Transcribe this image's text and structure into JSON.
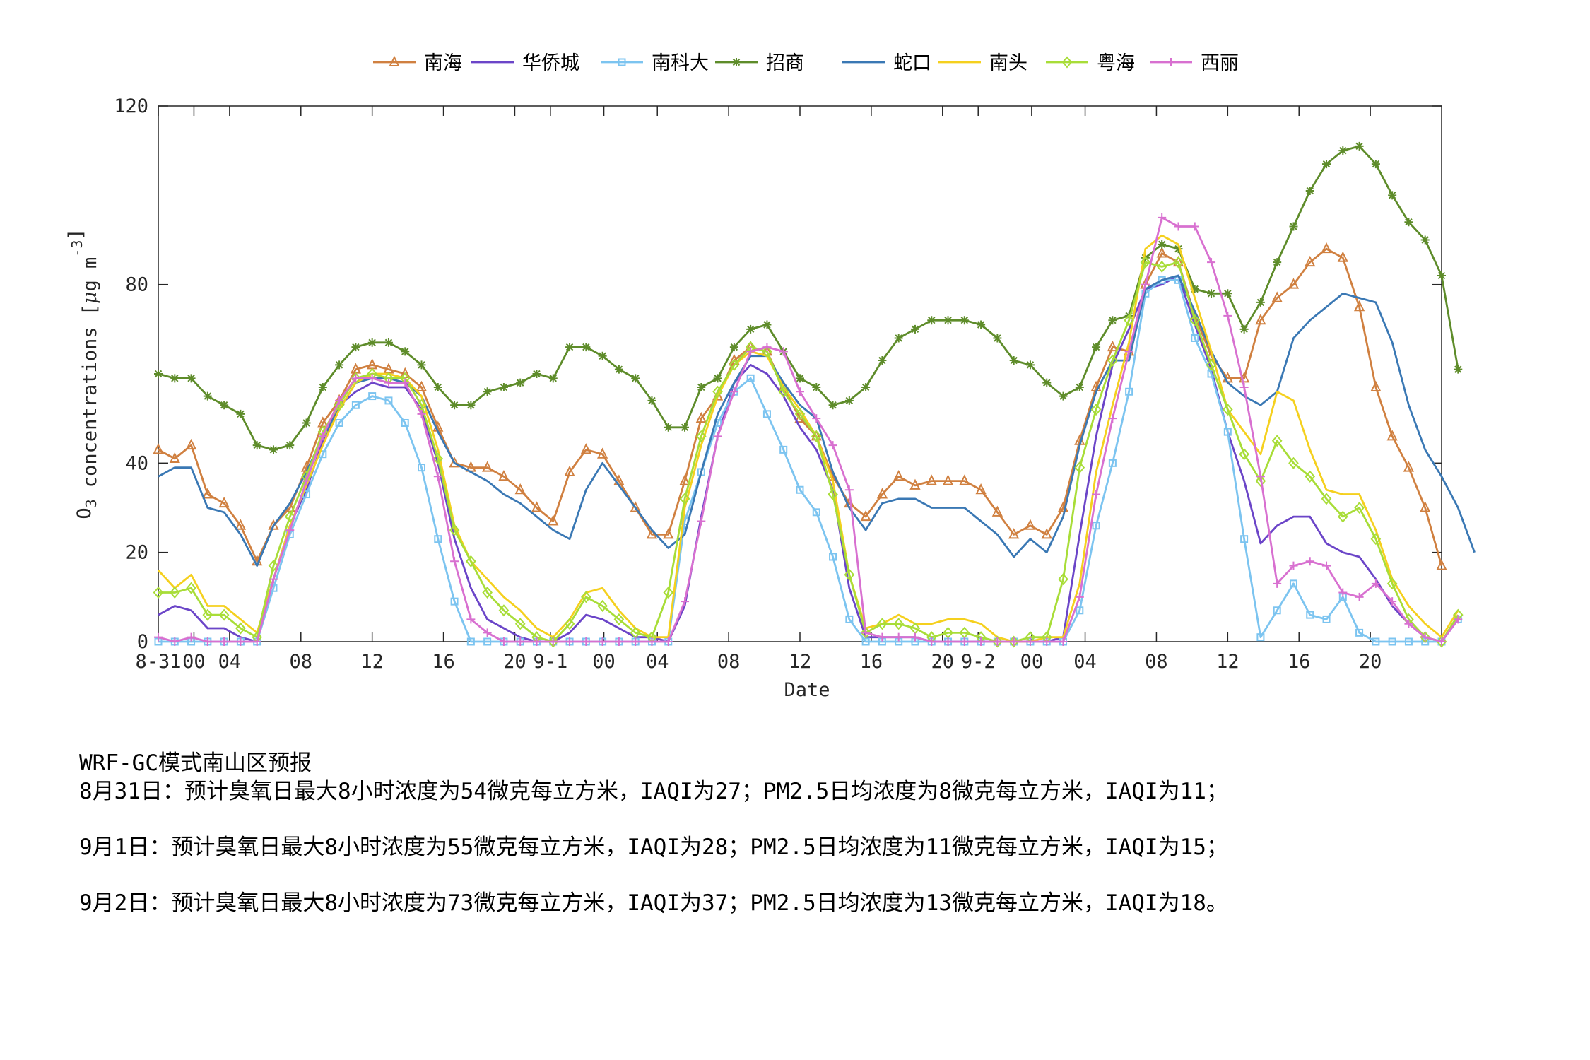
{
  "chart_data": {
    "type": "line",
    "title": "",
    "xlabel": "Date",
    "ylabel_prefix": "O",
    "ylabel_sub": "3",
    "ylabel_main": " concentrations [",
    "ylabel_mu": "μ",
    "ylabel_unit": "g m",
    "ylabel_sup": "-3",
    "ylabel_end": "]",
    "ylim": [
      0,
      120
    ],
    "yticks": [
      0,
      20,
      40,
      80,
      120
    ],
    "xlim": [
      0,
      72
    ],
    "xticks": [
      {
        "x": 0,
        "label": "8-31"
      },
      {
        "x": 2,
        "label": "00"
      },
      {
        "x": 4,
        "label": "04"
      },
      {
        "x": 8,
        "label": "08"
      },
      {
        "x": 12,
        "label": "12"
      },
      {
        "x": 16,
        "label": "16"
      },
      {
        "x": 20,
        "label": "20"
      },
      {
        "x": 22,
        "label": "9-1"
      },
      {
        "x": 25,
        "label": "00"
      },
      {
        "x": 28,
        "label": "04"
      },
      {
        "x": 32,
        "label": "08"
      },
      {
        "x": 36,
        "label": "12"
      },
      {
        "x": 40,
        "label": "16"
      },
      {
        "x": 44,
        "label": "20"
      },
      {
        "x": 46,
        "label": "9-2"
      },
      {
        "x": 49,
        "label": "00"
      },
      {
        "x": 52,
        "label": "04"
      },
      {
        "x": 56,
        "label": "08"
      },
      {
        "x": 60,
        "label": "12"
      },
      {
        "x": 64,
        "label": "16"
      },
      {
        "x": 68,
        "label": "20"
      }
    ],
    "legend_position": "top",
    "series": [
      {
        "name": "南海",
        "color": "#D08040",
        "marker": "triangle",
        "values": [
          43,
          41,
          44,
          33,
          31,
          26,
          18,
          26,
          30,
          39,
          49,
          54,
          61,
          62,
          61,
          60,
          57,
          48,
          40,
          39,
          39,
          37,
          34,
          30,
          27,
          38,
          43,
          42,
          36,
          30,
          24,
          24,
          36,
          50,
          55,
          63,
          66,
          65,
          57,
          50,
          46,
          37,
          31,
          28,
          33,
          37,
          35,
          36,
          36,
          36,
          34,
          29,
          24,
          26,
          24,
          30,
          45,
          57,
          66,
          65,
          80,
          87,
          85,
          73,
          64,
          59,
          59,
          72,
          77,
          80,
          85,
          88,
          86,
          75,
          57,
          46,
          39,
          30,
          17
        ]
      },
      {
        "name": "华侨城",
        "color": "#6B45C8",
        "marker": "none",
        "values": [
          6,
          8,
          7,
          3,
          3,
          1,
          0,
          14,
          26,
          34,
          45,
          53,
          56,
          58,
          57,
          57,
          52,
          40,
          23,
          12,
          5,
          3,
          1,
          0,
          0,
          2,
          6,
          5,
          3,
          1,
          1,
          0,
          8,
          28,
          46,
          58,
          62,
          60,
          55,
          48,
          43,
          34,
          12,
          1,
          1,
          1,
          1,
          0,
          0,
          0,
          0,
          0,
          0,
          0,
          0,
          1,
          24,
          46,
          62,
          70,
          79,
          80,
          82,
          71,
          61,
          47,
          36,
          22,
          26,
          28,
          28,
          22,
          20,
          19,
          14,
          8,
          4,
          1,
          0,
          5
        ]
      },
      {
        "name": "南科大",
        "color": "#7CC4F0",
        "marker": "square",
        "values": [
          0,
          0,
          0,
          0,
          0,
          0,
          0,
          12,
          24,
          33,
          42,
          49,
          53,
          55,
          54,
          49,
          39,
          23,
          9,
          0,
          0,
          0,
          0,
          0,
          0,
          0,
          0,
          0,
          0,
          0,
          0,
          0,
          27,
          38,
          49,
          56,
          59,
          51,
          43,
          34,
          29,
          19,
          5,
          0,
          0,
          0,
          0,
          0,
          0,
          0,
          0,
          0,
          0,
          0,
          0,
          0,
          7,
          26,
          40,
          56,
          78,
          81,
          81,
          68,
          60,
          47,
          23,
          1,
          7,
          13,
          6,
          5,
          10,
          2,
          0,
          0,
          0,
          0,
          0,
          5
        ]
      },
      {
        "name": "招商",
        "color": "#5E8C2A",
        "marker": "star",
        "values": [
          60,
          59,
          59,
          55,
          53,
          51,
          44,
          43,
          44,
          49,
          57,
          62,
          66,
          67,
          67,
          65,
          62,
          57,
          53,
          53,
          56,
          57,
          58,
          60,
          59,
          66,
          66,
          64,
          61,
          59,
          54,
          48,
          48,
          57,
          59,
          66,
          70,
          71,
          65,
          59,
          57,
          53,
          54,
          57,
          63,
          68,
          70,
          72,
          72,
          72,
          71,
          68,
          63,
          62,
          58,
          55,
          57,
          66,
          72,
          73,
          86,
          89,
          88,
          79,
          78,
          78,
          70,
          76,
          85,
          93,
          101,
          107,
          110,
          111,
          107,
          100,
          94,
          90,
          82,
          61
        ]
      },
      {
        "name": "蛇口",
        "color": "#3A78B4",
        "marker": "none",
        "values": [
          37,
          39,
          39,
          30,
          29,
          24,
          17,
          26,
          31,
          38,
          46,
          52,
          58,
          59,
          59,
          58,
          55,
          47,
          40,
          38,
          36,
          33,
          31,
          28,
          25,
          23,
          34,
          40,
          35,
          30,
          25,
          21,
          24,
          38,
          51,
          58,
          64,
          64,
          58,
          53,
          50,
          38,
          30,
          25,
          31,
          32,
          32,
          30,
          30,
          30,
          27,
          24,
          19,
          23,
          20,
          28,
          44,
          56,
          63,
          63,
          79,
          81,
          82,
          74,
          65,
          58,
          55,
          53,
          56,
          68,
          72,
          75,
          78,
          77,
          76,
          67,
          53,
          43,
          37,
          30,
          20
        ]
      },
      {
        "name": "南头",
        "color": "#F5D01E",
        "marker": "none",
        "values": [
          16,
          12,
          15,
          8,
          8,
          5,
          2,
          14,
          26,
          35,
          44,
          52,
          58,
          60,
          60,
          59,
          55,
          43,
          26,
          18,
          14,
          10,
          7,
          3,
          1,
          5,
          11,
          12,
          7,
          3,
          1,
          1,
          30,
          44,
          55,
          62,
          65,
          64,
          57,
          52,
          46,
          36,
          15,
          3,
          4,
          6,
          4,
          4,
          5,
          5,
          4,
          1,
          0,
          0,
          1,
          1,
          13,
          38,
          53,
          67,
          88,
          91,
          89,
          77,
          65,
          52,
          47,
          42,
          56,
          54,
          43,
          34,
          33,
          33,
          25,
          14,
          8,
          4,
          1,
          7
        ]
      },
      {
        "name": "粤海",
        "color": "#A8DD38",
        "marker": "diamond",
        "values": [
          11,
          11,
          12,
          6,
          6,
          3,
          1,
          17,
          28,
          37,
          47,
          53,
          59,
          60,
          59,
          59,
          53,
          41,
          25,
          18,
          11,
          7,
          4,
          1,
          0,
          4,
          10,
          8,
          5,
          2,
          1,
          11,
          32,
          46,
          56,
          62,
          66,
          65,
          56,
          51,
          46,
          33,
          15,
          2,
          4,
          4,
          3,
          1,
          2,
          2,
          1,
          0,
          0,
          1,
          1,
          14,
          39,
          52,
          63,
          72,
          85,
          84,
          85,
          72,
          62,
          52,
          42,
          36,
          45,
          40,
          37,
          32,
          28,
          30,
          23,
          13,
          5,
          1,
          0,
          6
        ]
      },
      {
        "name": "西丽",
        "color": "#D870D0",
        "marker": "plus",
        "values": [
          1,
          0,
          1,
          0,
          0,
          0,
          0,
          14,
          25,
          36,
          46,
          54,
          59,
          59,
          58,
          58,
          51,
          37,
          18,
          5,
          2,
          0,
          0,
          0,
          0,
          0,
          0,
          0,
          0,
          0,
          0,
          0,
          9,
          27,
          46,
          56,
          65,
          66,
          65,
          56,
          50,
          44,
          34,
          2,
          1,
          1,
          1,
          0,
          0,
          0,
          0,
          0,
          0,
          0,
          0,
          0,
          10,
          33,
          50,
          65,
          80,
          95,
          93,
          93,
          85,
          73,
          57,
          37,
          13,
          17,
          18,
          17,
          11,
          10,
          13,
          9,
          4,
          1,
          0,
          5
        ]
      }
    ]
  },
  "notes": {
    "title": "WRF-GC模式南山区预报",
    "lines": [
      "8月31日：预计臭氧日最大8小时浓度为54微克每立方米，IAQI为27；PM2.5日均浓度为8微克每立方米，IAQI为11；",
      "9月1日：预计臭氧日最大8小时浓度为55微克每立方米，IAQI为28；PM2.5日均浓度为11微克每立方米，IAQI为15；",
      "9月2日：预计臭氧日最大8小时浓度为73微克每立方米，IAQI为37；PM2.5日均浓度为13微克每立方米，IAQI为18。"
    ]
  }
}
